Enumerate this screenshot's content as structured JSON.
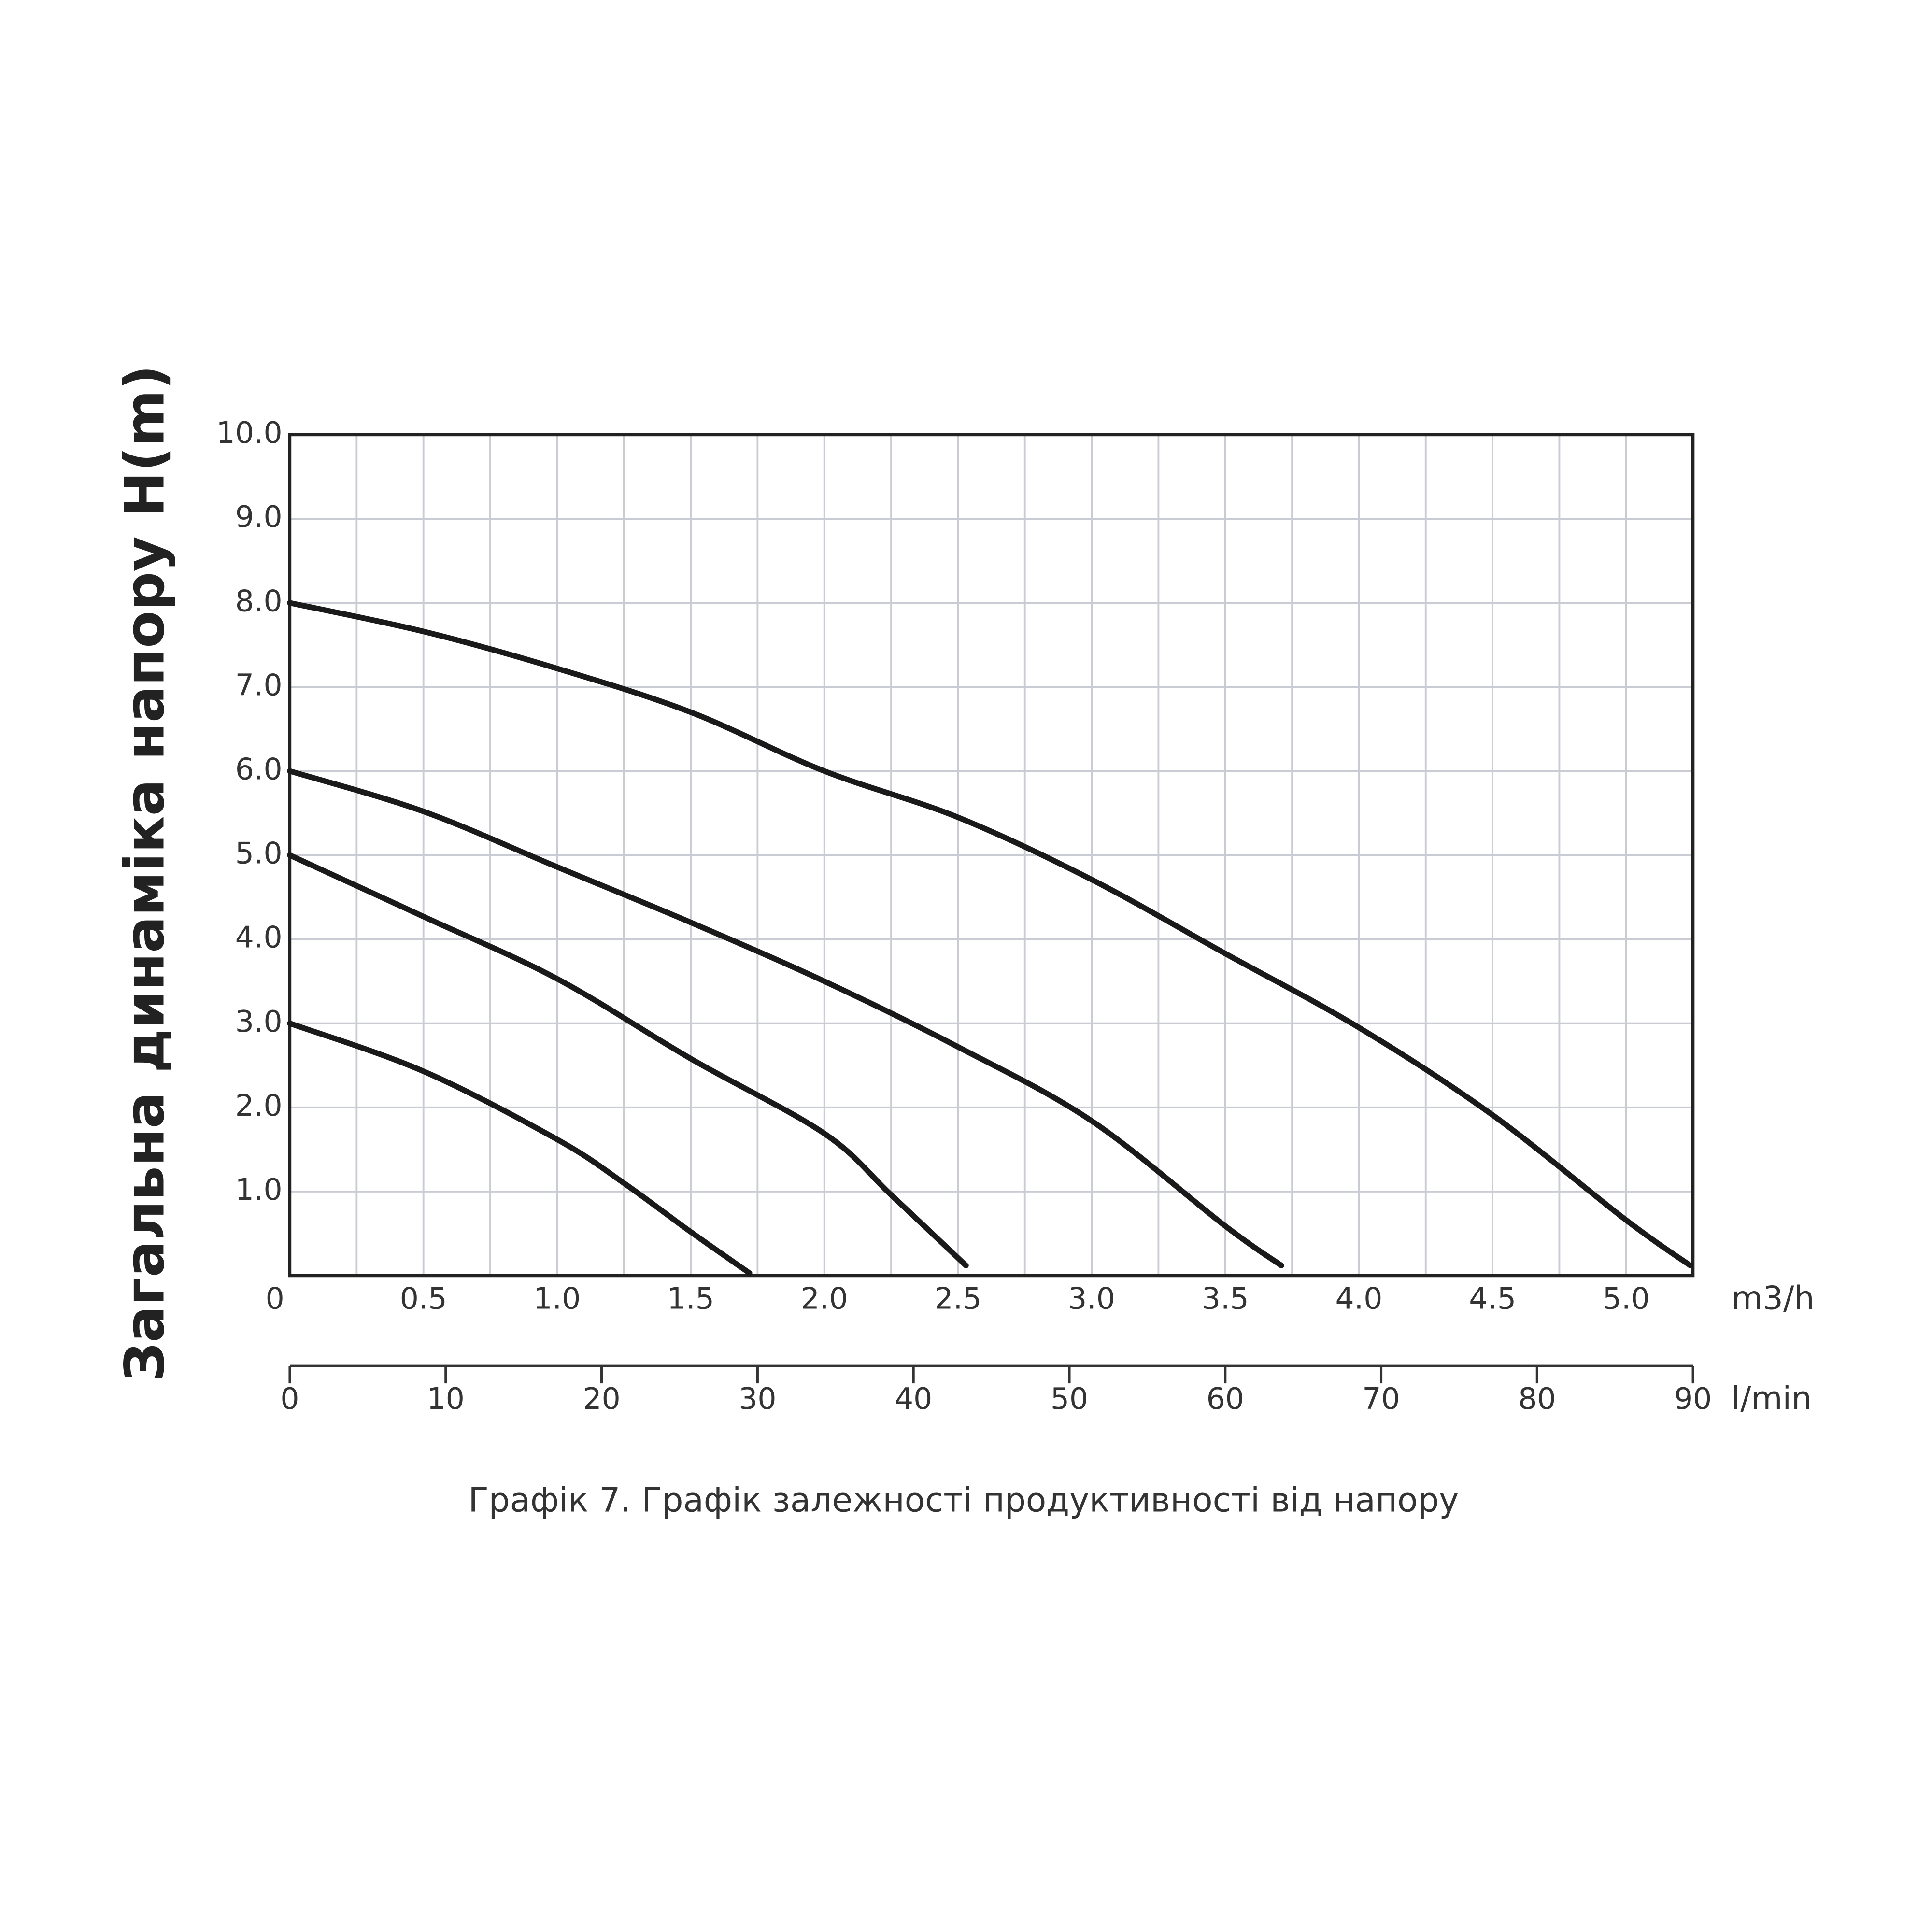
{
  "chart_data": {
    "type": "line",
    "title": "Графік 7. Графік залежності продуктивності від напору",
    "ylabel": "Загальна динаміка напору H(m)",
    "xlabel": "m3/h",
    "x2label": "l/min",
    "xlim": [
      0,
      5.25
    ],
    "xticks": [
      0,
      0.5,
      {
        "value": 1,
        "label": "1.0"
      },
      1.5,
      {
        "value": 2,
        "label": "2.0"
      },
      2.5,
      {
        "value": 3,
        "label": "3.0"
      },
      3.5,
      {
        "value": 4,
        "label": "4.0"
      },
      4.5,
      {
        "value": 5,
        "label": "5.0"
      }
    ],
    "xgrid": [
      0.25,
      0.75,
      1.25,
      1.75,
      2.25,
      2.75,
      3.25,
      3.75,
      4.25,
      4.75
    ],
    "x2lim": [
      0,
      90
    ],
    "x2ticks": [
      0,
      10,
      20,
      30,
      40,
      50,
      60,
      70,
      80,
      90
    ],
    "ylim": [
      0,
      10
    ],
    "yticks": [
      {
        "value": 1,
        "label": "1.0"
      },
      {
        "value": 2,
        "label": "2.0"
      },
      {
        "value": 3,
        "label": "3.0"
      },
      {
        "value": 4,
        "label": "4.0"
      },
      {
        "value": 5,
        "label": "5.0"
      },
      {
        "value": 6,
        "label": "6.0"
      },
      {
        "value": 7,
        "label": "7.0"
      },
      {
        "value": 8,
        "label": "8.0"
      },
      {
        "value": 9,
        "label": "9.0"
      },
      {
        "value": 10,
        "label": "10.0"
      }
    ],
    "grid": true,
    "series": [
      {
        "color": "#1a1a1a",
        "x": [
          0,
          0.5,
          1,
          1.5,
          2,
          2.5,
          3,
          3.5,
          4,
          4.5,
          5,
          5.24
        ],
        "values": [
          8.0,
          7.66,
          7.22,
          6.7,
          6.0,
          5.45,
          4.71,
          3.83,
          2.95,
          1.91,
          0.66,
          0.12
        ]
      },
      {
        "color": "#1a1a1a",
        "x": [
          0,
          0.5,
          1,
          1.5,
          2,
          2.5,
          3,
          3.5,
          3.71
        ],
        "values": [
          6.0,
          5.52,
          4.86,
          4.2,
          3.5,
          2.72,
          1.84,
          0.59,
          0.12
        ]
      },
      {
        "color": "#1a1a1a",
        "x": [
          0,
          0.5,
          1,
          1.5,
          2,
          2.25,
          2.53
        ],
        "values": [
          5.0,
          4.27,
          3.53,
          2.58,
          1.69,
          0.96,
          0.12
        ]
      },
      {
        "color": "#1a1a1a",
        "x": [
          0,
          0.5,
          1,
          1.25,
          1.5,
          1.72
        ],
        "values": [
          3.0,
          2.43,
          1.62,
          1.1,
          0.52,
          0.03
        ]
      }
    ]
  }
}
